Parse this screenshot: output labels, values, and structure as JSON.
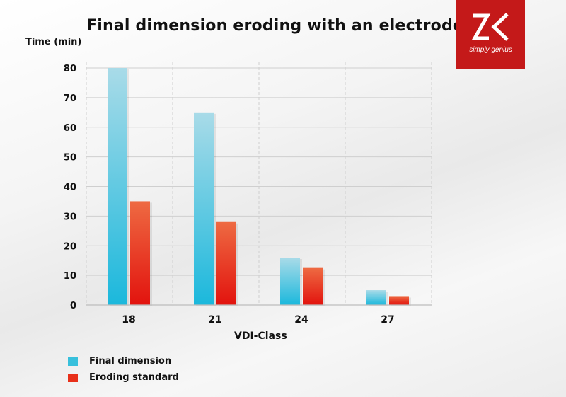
{
  "chart_data": {
    "type": "bar",
    "title": "Final dimension eroding with an electrode",
    "ylabel": "Time (min)",
    "xlabel": "VDI-Class",
    "categories": [
      "18",
      "21",
      "24",
      "27"
    ],
    "ylim": [
      0,
      80
    ],
    "yticks": [
      0,
      10,
      20,
      30,
      40,
      50,
      60,
      70,
      80
    ],
    "grid": true,
    "legend_position": "bottom-left",
    "series": [
      {
        "name": "Final dimension",
        "values": [
          80,
          65,
          16,
          5
        ],
        "color": "#38c0dc"
      },
      {
        "name": "Eroding standard",
        "values": [
          35,
          28,
          12.5,
          3
        ],
        "color": "#e8301a"
      }
    ]
  },
  "logo": {
    "brand": "ZK",
    "tagline": "simply genius",
    "color": "#c41919"
  }
}
